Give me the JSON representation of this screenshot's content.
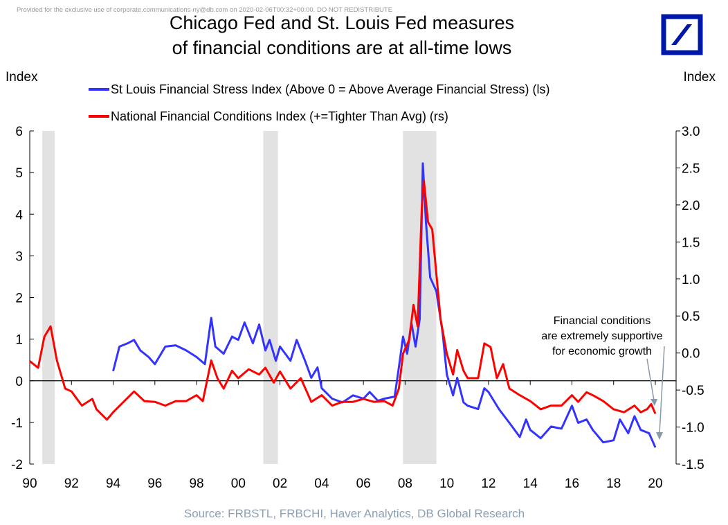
{
  "watermark": "Provided for the exclusive use of corporate.communications-ny@db.com on 2020-02-06T00:32+00:00. DO NOT REDISTRIBUTE",
  "logo": {
    "color": "#0018A8"
  },
  "chart_data": {
    "type": "line",
    "title": [
      "Chicago Fed and St. Louis Fed measures",
      "of financial conditions are at all-time lows"
    ],
    "ylabel_left": "Index",
    "ylabel_right": "Index",
    "source": "Source: FRBSTL, FRBCHI, Haver Analytics, DB Global Research",
    "annotation": [
      "Financial conditions",
      "are extremely supportive",
      "for economic growth"
    ],
    "xlim": [
      1990,
      2020
    ],
    "x_ticks": [
      1990,
      1992,
      1994,
      1996,
      1998,
      2000,
      2002,
      2004,
      2006,
      2008,
      2010,
      2012,
      2014,
      2016,
      2018,
      2020
    ],
    "x_tick_labels": [
      "90",
      "92",
      "94",
      "96",
      "98",
      "00",
      "02",
      "04",
      "06",
      "08",
      "10",
      "12",
      "14",
      "16",
      "18",
      "20"
    ],
    "ylim_left": [
      -2,
      6
    ],
    "y_ticks_left": [
      "-2",
      "-1",
      "0",
      "1",
      "2",
      "3",
      "4",
      "5",
      "6"
    ],
    "ylim_right": [
      -1.5,
      3.0
    ],
    "y_ticks_right": [
      "-1.5",
      "-1.0",
      "-0.5",
      "0.0",
      "0.5",
      "1.0",
      "1.5",
      "2.0",
      "2.5",
      "3.0"
    ],
    "recessions": [
      [
        1990.6,
        1991.2
      ],
      [
        2001.2,
        2001.9
      ],
      [
        2007.9,
        2009.5
      ]
    ],
    "legend_position": "top-left",
    "series": [
      {
        "name": "St Louis Financial Stress Index (Above 0 = Above Average Financial Stress) (ls)",
        "axis": "left",
        "color": "#3333FF",
        "points": [
          [
            1994.0,
            0.23
          ],
          [
            1994.3,
            0.82
          ],
          [
            1994.7,
            0.9
          ],
          [
            1995.0,
            0.98
          ],
          [
            1995.3,
            0.73
          ],
          [
            1995.7,
            0.57
          ],
          [
            1996.0,
            0.4
          ],
          [
            1996.5,
            0.82
          ],
          [
            1997.0,
            0.85
          ],
          [
            1997.5,
            0.73
          ],
          [
            1998.0,
            0.57
          ],
          [
            1998.4,
            0.4
          ],
          [
            1998.7,
            1.51
          ],
          [
            1998.9,
            0.82
          ],
          [
            1999.3,
            0.65
          ],
          [
            1999.7,
            1.06
          ],
          [
            2000.0,
            0.98
          ],
          [
            2000.3,
            1.4
          ],
          [
            2000.7,
            0.9
          ],
          [
            2001.0,
            1.35
          ],
          [
            2001.3,
            0.73
          ],
          [
            2001.5,
            0.98
          ],
          [
            2001.8,
            0.48
          ],
          [
            2002.0,
            0.82
          ],
          [
            2002.5,
            0.48
          ],
          [
            2002.8,
            0.98
          ],
          [
            2003.2,
            0.48
          ],
          [
            2003.5,
            0.07
          ],
          [
            2003.8,
            0.32
          ],
          [
            2004.0,
            -0.18
          ],
          [
            2004.5,
            -0.43
          ],
          [
            2005.0,
            -0.52
          ],
          [
            2005.5,
            -0.35
          ],
          [
            2006.0,
            -0.43
          ],
          [
            2006.3,
            -0.27
          ],
          [
            2006.7,
            -0.48
          ],
          [
            2007.0,
            -0.43
          ],
          [
            2007.5,
            -0.38
          ],
          [
            2007.7,
            0.32
          ],
          [
            2007.9,
            1.06
          ],
          [
            2008.1,
            0.65
          ],
          [
            2008.3,
            1.4
          ],
          [
            2008.5,
            0.82
          ],
          [
            2008.7,
            1.48
          ],
          [
            2008.85,
            5.22
          ],
          [
            2009.0,
            3.81
          ],
          [
            2009.2,
            2.48
          ],
          [
            2009.5,
            2.15
          ],
          [
            2009.8,
            1.15
          ],
          [
            2010.0,
            0.15
          ],
          [
            2010.3,
            -0.35
          ],
          [
            2010.5,
            0.07
          ],
          [
            2010.8,
            -0.52
          ],
          [
            2011.0,
            -0.6
          ],
          [
            2011.5,
            -0.68
          ],
          [
            2011.8,
            -0.18
          ],
          [
            2012.0,
            -0.27
          ],
          [
            2012.5,
            -0.68
          ],
          [
            2013.0,
            -1.01
          ],
          [
            2013.5,
            -1.35
          ],
          [
            2013.8,
            -0.93
          ],
          [
            2014.0,
            -1.18
          ],
          [
            2014.5,
            -1.38
          ],
          [
            2015.0,
            -1.1
          ],
          [
            2015.5,
            -1.15
          ],
          [
            2016.0,
            -0.6
          ],
          [
            2016.3,
            -1.01
          ],
          [
            2016.7,
            -0.93
          ],
          [
            2017.0,
            -1.18
          ],
          [
            2017.5,
            -1.48
          ],
          [
            2018.0,
            -1.43
          ],
          [
            2018.3,
            -0.93
          ],
          [
            2018.7,
            -1.26
          ],
          [
            2019.0,
            -0.85
          ],
          [
            2019.3,
            -1.18
          ],
          [
            2019.7,
            -1.26
          ],
          [
            2020.0,
            -1.6
          ]
        ]
      },
      {
        "name": "National Financial Conditions Index (+=Tighter Than Avg) (rs)",
        "axis": "right",
        "color": "#FF0000",
        "points": [
          [
            1990.0,
            -0.11
          ],
          [
            1990.4,
            -0.2
          ],
          [
            1990.7,
            0.22
          ],
          [
            1991.0,
            0.36
          ],
          [
            1991.3,
            -0.1
          ],
          [
            1991.7,
            -0.48
          ],
          [
            1992.0,
            -0.52
          ],
          [
            1992.5,
            -0.71
          ],
          [
            1993.0,
            -0.62
          ],
          [
            1993.2,
            -0.76
          ],
          [
            1993.7,
            -0.9
          ],
          [
            1994.0,
            -0.8
          ],
          [
            1994.5,
            -0.66
          ],
          [
            1995.0,
            -0.52
          ],
          [
            1995.5,
            -0.65
          ],
          [
            1996.0,
            -0.66
          ],
          [
            1996.5,
            -0.71
          ],
          [
            1997.0,
            -0.65
          ],
          [
            1997.5,
            -0.65
          ],
          [
            1998.0,
            -0.57
          ],
          [
            1998.3,
            -0.65
          ],
          [
            1998.7,
            -0.1
          ],
          [
            1999.0,
            -0.34
          ],
          [
            1999.3,
            -0.48
          ],
          [
            1999.7,
            -0.24
          ],
          [
            2000.0,
            -0.34
          ],
          [
            2000.5,
            -0.22
          ],
          [
            2001.0,
            -0.29
          ],
          [
            2001.3,
            -0.2
          ],
          [
            2001.7,
            -0.4
          ],
          [
            2002.0,
            -0.25
          ],
          [
            2002.5,
            -0.48
          ],
          [
            2003.0,
            -0.34
          ],
          [
            2003.5,
            -0.66
          ],
          [
            2004.0,
            -0.57
          ],
          [
            2004.5,
            -0.71
          ],
          [
            2005.0,
            -0.66
          ],
          [
            2005.5,
            -0.66
          ],
          [
            2006.0,
            -0.62
          ],
          [
            2006.5,
            -0.66
          ],
          [
            2007.0,
            -0.65
          ],
          [
            2007.4,
            -0.71
          ],
          [
            2007.7,
            -0.48
          ],
          [
            2007.9,
            -0.01
          ],
          [
            2008.2,
            0.18
          ],
          [
            2008.4,
            0.65
          ],
          [
            2008.6,
            0.36
          ],
          [
            2008.8,
            1.96
          ],
          [
            2008.9,
            2.33
          ],
          [
            2009.1,
            1.77
          ],
          [
            2009.3,
            1.67
          ],
          [
            2009.7,
            0.46
          ],
          [
            2010.0,
            -0.01
          ],
          [
            2010.3,
            -0.29
          ],
          [
            2010.5,
            0.04
          ],
          [
            2010.8,
            -0.24
          ],
          [
            2011.0,
            -0.34
          ],
          [
            2011.5,
            -0.34
          ],
          [
            2011.8,
            0.13
          ],
          [
            2012.1,
            0.08
          ],
          [
            2012.4,
            -0.34
          ],
          [
            2012.7,
            -0.15
          ],
          [
            2013.0,
            -0.48
          ],
          [
            2013.5,
            -0.57
          ],
          [
            2014.0,
            -0.65
          ],
          [
            2014.5,
            -0.76
          ],
          [
            2015.0,
            -0.71
          ],
          [
            2015.5,
            -0.71
          ],
          [
            2016.0,
            -0.57
          ],
          [
            2016.3,
            -0.66
          ],
          [
            2016.7,
            -0.53
          ],
          [
            2017.0,
            -0.57
          ],
          [
            2017.5,
            -0.65
          ],
          [
            2018.0,
            -0.76
          ],
          [
            2018.5,
            -0.8
          ],
          [
            2019.0,
            -0.71
          ],
          [
            2019.3,
            -0.8
          ],
          [
            2019.6,
            -0.76
          ],
          [
            2019.8,
            -0.69
          ],
          [
            2020.0,
            -0.82
          ]
        ]
      }
    ]
  }
}
